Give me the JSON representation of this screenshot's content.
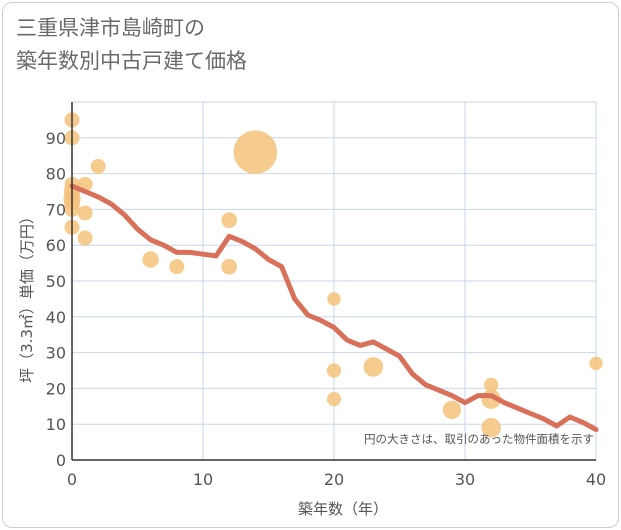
{
  "chart_data": {
    "type": "scatter",
    "title_line1": "三重県津市島崎町の",
    "title_line2": "築年数別中古戸建て価格",
    "xlabel": "築年数（年）",
    "ylabel": "坪（3.3㎡）単価（万円）",
    "xlim": [
      0,
      40
    ],
    "ylim": [
      0,
      100
    ],
    "x_ticks": [
      0,
      10,
      20,
      30,
      40
    ],
    "y_ticks": [
      0,
      10,
      20,
      30,
      40,
      50,
      60,
      70,
      80,
      90
    ],
    "grid": true,
    "note": "円の大きさは、取引のあった物件面積を示す",
    "colors": {
      "bubble": "#f5c27a",
      "line": "#d9705a",
      "grid": "#c9d6e8",
      "axis": "#333333"
    },
    "points": [
      {
        "x": 0,
        "y": 95,
        "size": 1
      },
      {
        "x": 0,
        "y": 90,
        "size": 1
      },
      {
        "x": 0,
        "y": 77,
        "size": 1
      },
      {
        "x": 0,
        "y": 75,
        "size": 1.2
      },
      {
        "x": 0,
        "y": 73,
        "size": 1.3
      },
      {
        "x": 0,
        "y": 72,
        "size": 1.2
      },
      {
        "x": 0,
        "y": 70,
        "size": 1
      },
      {
        "x": 0,
        "y": 65,
        "size": 1
      },
      {
        "x": 1,
        "y": 77,
        "size": 1
      },
      {
        "x": 1,
        "y": 69,
        "size": 1
      },
      {
        "x": 1,
        "y": 62,
        "size": 1
      },
      {
        "x": 2,
        "y": 82,
        "size": 1
      },
      {
        "x": 6,
        "y": 56,
        "size": 1.2
      },
      {
        "x": 8,
        "y": 54,
        "size": 1
      },
      {
        "x": 12,
        "y": 67,
        "size": 1.1
      },
      {
        "x": 12,
        "y": 54,
        "size": 1.1
      },
      {
        "x": 14,
        "y": 86,
        "size": 5
      },
      {
        "x": 20,
        "y": 45,
        "size": 0.8
      },
      {
        "x": 20,
        "y": 25,
        "size": 0.9
      },
      {
        "x": 20,
        "y": 17,
        "size": 0.9
      },
      {
        "x": 23,
        "y": 26,
        "size": 1.7
      },
      {
        "x": 29,
        "y": 14,
        "size": 1.5
      },
      {
        "x": 32,
        "y": 21,
        "size": 0.9
      },
      {
        "x": 32,
        "y": 17,
        "size": 1.7
      },
      {
        "x": 32,
        "y": 9,
        "size": 1.7
      },
      {
        "x": 40,
        "y": 27,
        "size": 0.8
      }
    ],
    "trend": {
      "x": [
        0,
        1,
        2,
        3,
        4,
        5,
        6,
        7,
        8,
        9,
        10,
        11,
        12,
        13,
        14,
        15,
        16,
        17,
        18,
        19,
        20,
        21,
        22,
        23,
        24,
        25,
        26,
        27,
        28,
        29,
        30,
        31,
        32,
        33,
        34,
        35,
        36,
        37,
        38,
        39,
        40
      ],
      "y": [
        76.5,
        75,
        73.5,
        71.5,
        68.5,
        64.5,
        61.5,
        60,
        58,
        58,
        57.5,
        57,
        62.5,
        61,
        59,
        56,
        54,
        45,
        40.5,
        39,
        37,
        33.5,
        32,
        33,
        31,
        29,
        24,
        21,
        19.5,
        18,
        16,
        18,
        18,
        16,
        14.5,
        13,
        11.5,
        9.5,
        12,
        10.5,
        8.5
      ]
    }
  }
}
